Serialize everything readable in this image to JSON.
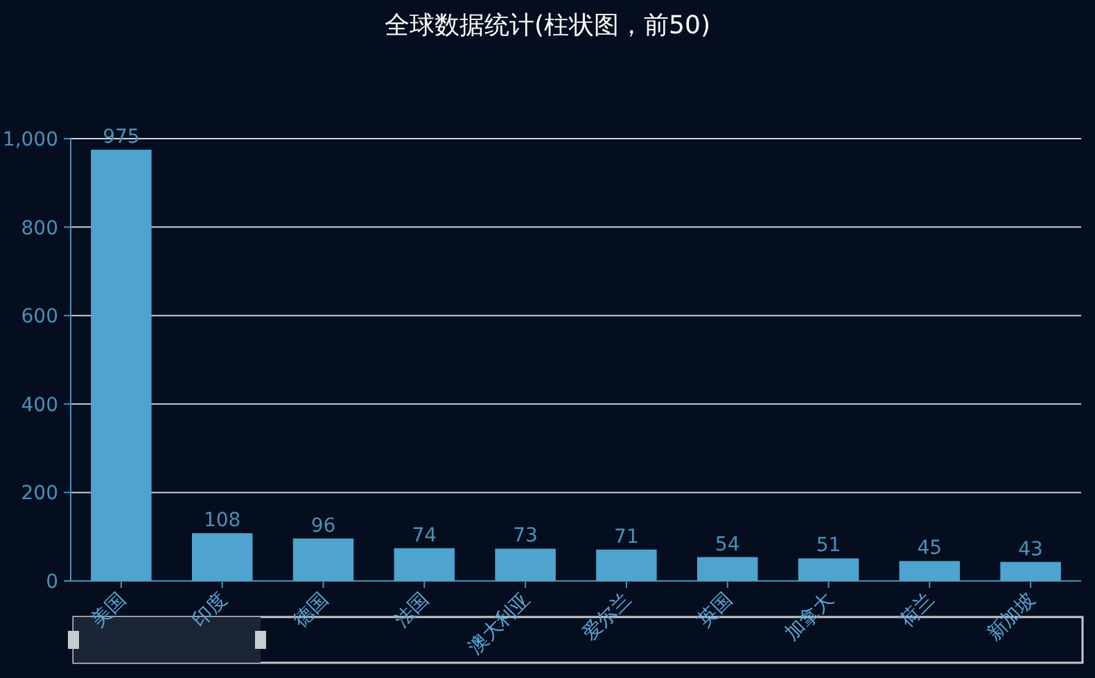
{
  "chart_data": {
    "type": "bar",
    "title": "全球数据统计(柱状图，前50)",
    "categories": [
      "美国",
      "印度",
      "德国",
      "法国",
      "澳大利亚",
      "爱尔兰",
      "英国",
      "加拿大",
      "荷兰",
      "新加坡"
    ],
    "values": [
      975,
      108,
      96,
      74,
      73,
      71,
      54,
      51,
      45,
      43
    ],
    "color": "#4fa3cf",
    "ylim": [
      0,
      1000
    ],
    "yticks": [
      0,
      200,
      400,
      600,
      800,
      {
        "value": 1000,
        "label": "1,000"
      }
    ],
    "grid": "y",
    "data_labels": true
  }
}
